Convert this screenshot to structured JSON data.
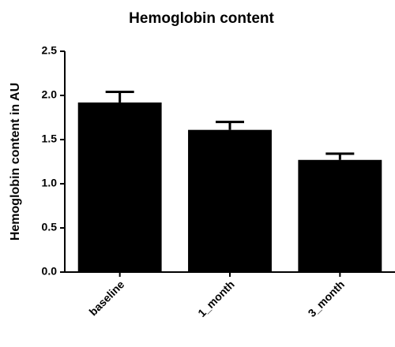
{
  "chart_data": {
    "type": "bar",
    "title": "Hemoglobin content",
    "y_label": "Hemoglobin content in AU",
    "categories": [
      "baseline",
      "1_month",
      "3_month"
    ],
    "values": [
      1.92,
      1.61,
      1.27
    ],
    "errors": [
      0.12,
      0.09,
      0.07
    ],
    "color": "#000000",
    "ylim": [
      0,
      2.5
    ],
    "yticks": [
      {
        "value": 0,
        "label": "0.0"
      },
      0.5,
      {
        "value": 1,
        "label": "1.0"
      },
      1.5,
      {
        "value": 2,
        "label": "2.0"
      },
      2.5
    ],
    "grid": false
  }
}
